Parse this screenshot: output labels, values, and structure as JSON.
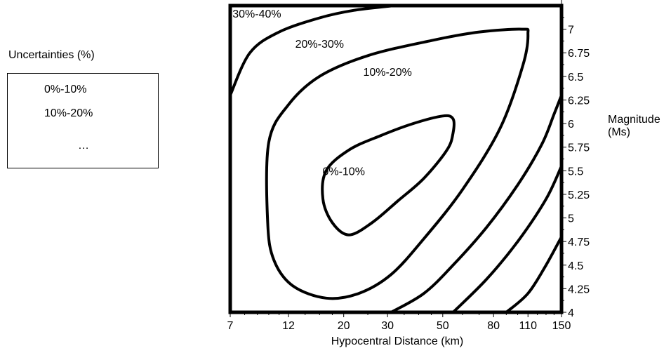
{
  "legend": {
    "title": "Uncertainties (%)",
    "items": [
      "0%-10%",
      "10%-20%",
      "…"
    ]
  },
  "chart_data": {
    "type": "contour",
    "title": "",
    "xlabel": "Hypocentral Distance (km)",
    "ylabel": "Magnitude (Ms)",
    "xscale": "log",
    "xlim": [
      7,
      150
    ],
    "ylim": [
      4,
      7.25
    ],
    "x_ticks": [
      7,
      12,
      20,
      30,
      50,
      80,
      110,
      150
    ],
    "y_ticks": [
      4,
      4.25,
      4.5,
      4.75,
      5,
      5.25,
      5.5,
      5.75,
      6,
      6.25,
      6.5,
      6.75,
      7
    ],
    "y_axis_side": "right",
    "grid": false,
    "contours": [
      {
        "label": "0%-10%",
        "closed": true,
        "label_pos": [
          20,
          5.5
        ],
        "points": [
          [
            17,
            5.5
          ],
          [
            16.5,
            5.2
          ],
          [
            18,
            4.95
          ],
          [
            21,
            4.82
          ],
          [
            26,
            4.95
          ],
          [
            33,
            5.18
          ],
          [
            42,
            5.42
          ],
          [
            52,
            5.72
          ],
          [
            55,
            5.9
          ],
          [
            55,
            6.05
          ],
          [
            50,
            6.08
          ],
          [
            38,
            6.0
          ],
          [
            28,
            5.87
          ],
          [
            21,
            5.72
          ]
        ]
      },
      {
        "label": "10%-20%",
        "closed": true,
        "label_pos": [
          30,
          6.55
        ],
        "points": [
          [
            10,
            5.8
          ],
          [
            9.9,
            4.95
          ],
          [
            10.5,
            4.55
          ],
          [
            12.5,
            4.28
          ],
          [
            17,
            4.15
          ],
          [
            23,
            4.2
          ],
          [
            31,
            4.4
          ],
          [
            42,
            4.78
          ],
          [
            60,
            5.3
          ],
          [
            85,
            5.95
          ],
          [
            105,
            6.62
          ],
          [
            110,
            6.95
          ],
          [
            104,
            7.0
          ],
          [
            70,
            6.97
          ],
          [
            45,
            6.88
          ],
          [
            25,
            6.72
          ],
          [
            16,
            6.5
          ],
          [
            12,
            6.2
          ]
        ]
      },
      {
        "label": "20%-30%",
        "closed": false,
        "label_pos": [
          16,
          6.85
        ],
        "points": [
          [
            7,
            6.3
          ],
          [
            8.4,
            6.75
          ],
          [
            11,
            6.97
          ],
          [
            16,
            7.12
          ],
          [
            22,
            7.2
          ],
          [
            32,
            7.25
          ]
        ]
      },
      {
        "label": "",
        "closed": false,
        "points": [
          [
            31,
            4
          ],
          [
            42,
            4.2
          ],
          [
            55,
            4.5
          ],
          [
            75,
            4.9
          ],
          [
            100,
            5.35
          ],
          [
            125,
            5.78
          ],
          [
            140,
            6.1
          ],
          [
            150,
            6.3
          ]
        ]
      },
      {
        "label": "",
        "closed": false,
        "points": [
          [
            55,
            4
          ],
          [
            75,
            4.35
          ],
          [
            100,
            4.75
          ],
          [
            130,
            5.2
          ],
          [
            150,
            5.55
          ]
        ]
      },
      {
        "label": "",
        "closed": false,
        "points": [
          [
            90,
            4
          ],
          [
            110,
            4.2
          ],
          [
            130,
            4.5
          ],
          [
            150,
            4.8
          ]
        ]
      }
    ],
    "annotations": [
      {
        "text": "30%-40%",
        "pos": [
          7.15,
          7.17
        ]
      }
    ]
  }
}
